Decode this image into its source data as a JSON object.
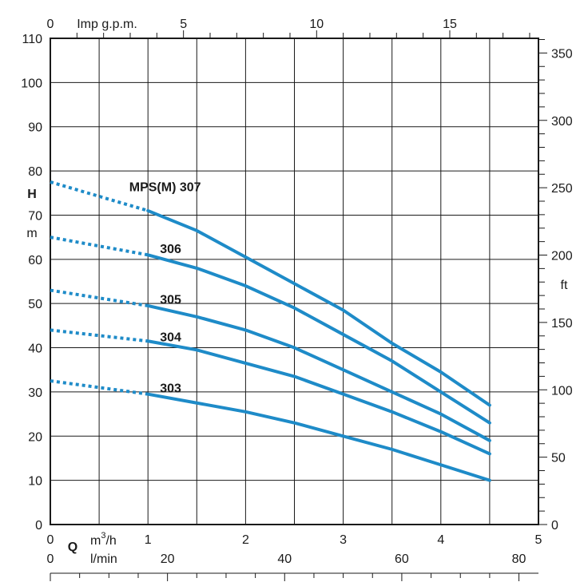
{
  "chart_data": {
    "type": "line",
    "x_label": "m3/h",
    "x_label_base": "m",
    "x_label_sup": "3",
    "x_label_tail": "/h",
    "q_label": "Q",
    "xlim": [
      0,
      5
    ],
    "x_ticks": [
      "0",
      "1",
      "2",
      "3",
      "4",
      "5"
    ],
    "y_label_h": "H",
    "y_label_unit": "m",
    "ylim": [
      0,
      110
    ],
    "y_ticks": [
      "0",
      "10",
      "20",
      "30",
      "40",
      "50",
      "60",
      "70",
      "80",
      "90",
      "100",
      "110"
    ],
    "right_axis": {
      "unit": "ft",
      "ticks": [
        "0",
        "50",
        "100",
        "150",
        "200",
        "250",
        "300",
        "350"
      ]
    },
    "top_axis": {
      "unit": "Imp g.p.m.",
      "ticks": [
        "0",
        "5",
        "10",
        "15"
      ]
    },
    "bottom_axis_2": {
      "unit": "l/min",
      "ticks": [
        "0",
        "20",
        "40",
        "60",
        "80"
      ]
    },
    "series": [
      {
        "name": "MPS(M) 307",
        "dashed": {
          "x": [
            0,
            1.0
          ],
          "y": [
            77.5,
            71.0
          ]
        },
        "solid": {
          "x": [
            1.0,
            1.5,
            2.0,
            2.5,
            3.0,
            3.5,
            4.0,
            4.5
          ],
          "y": [
            71.0,
            66.5,
            60.5,
            54.5,
            48.5,
            41.0,
            34.5,
            27.0
          ]
        }
      },
      {
        "name": "306",
        "dashed": {
          "x": [
            0,
            1.0
          ],
          "y": [
            65.0,
            61.0
          ]
        },
        "solid": {
          "x": [
            1.0,
            1.5,
            2.0,
            2.5,
            3.0,
            3.5,
            4.0,
            4.5
          ],
          "y": [
            61.0,
            58.0,
            54.0,
            49.0,
            43.0,
            37.0,
            30.0,
            23.0
          ]
        }
      },
      {
        "name": "305",
        "dashed": {
          "x": [
            0,
            1.0
          ],
          "y": [
            53.0,
            49.5
          ]
        },
        "solid": {
          "x": [
            1.0,
            1.5,
            2.0,
            2.5,
            3.0,
            3.5,
            4.0,
            4.5
          ],
          "y": [
            49.5,
            47.0,
            44.0,
            40.0,
            35.0,
            30.0,
            25.0,
            19.0
          ]
        }
      },
      {
        "name": "304",
        "dashed": {
          "x": [
            0,
            1.0
          ],
          "y": [
            44.0,
            41.5
          ]
        },
        "solid": {
          "x": [
            1.0,
            1.5,
            2.0,
            2.5,
            3.0,
            3.5,
            4.0,
            4.5
          ],
          "y": [
            41.5,
            39.5,
            36.5,
            33.5,
            29.5,
            25.5,
            21.0,
            16.0
          ]
        }
      },
      {
        "name": "303",
        "dashed": {
          "x": [
            0,
            1.0
          ],
          "y": [
            32.5,
            29.5
          ]
        },
        "solid": {
          "x": [
            1.0,
            1.5,
            2.0,
            2.5,
            3.0,
            3.5,
            4.0,
            4.5
          ],
          "y": [
            29.5,
            27.5,
            25.5,
            23.0,
            20.0,
            17.0,
            13.5,
            10.0
          ]
        }
      }
    ],
    "grid": true,
    "line_color": "#1e8bc8"
  }
}
